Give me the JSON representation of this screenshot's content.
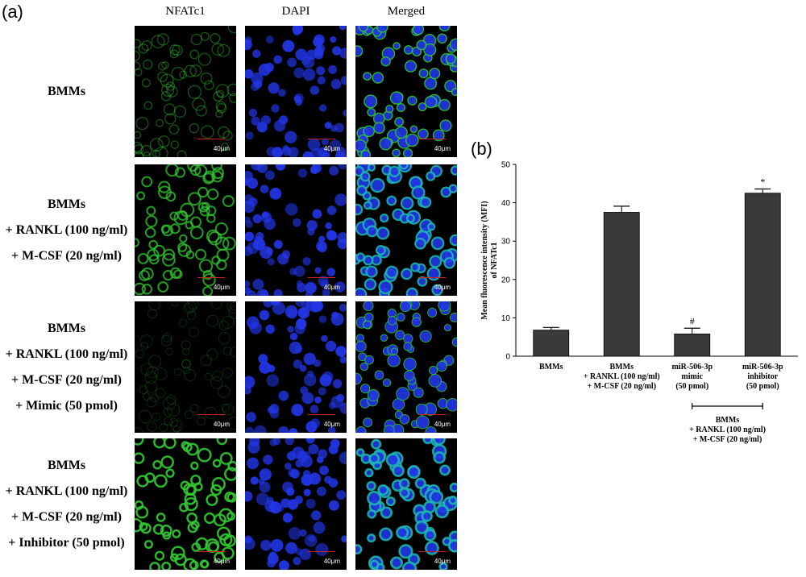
{
  "panel_a": {
    "letter": "(a)",
    "columns": [
      "NFATc1",
      "DAPI",
      "Merged"
    ],
    "rows": [
      {
        "label_lines": [
          "BMMs"
        ],
        "level": 0.35
      },
      {
        "label_lines": [
          "BMMs",
          "+ RANKL (100 ng/ml)",
          "+ M-CSF (20 ng/ml)"
        ],
        "level": 0.75
      },
      {
        "label_lines": [
          "BMMs",
          "+ RANKL (100 ng/ml)",
          "+ M-CSF (20 ng/ml)",
          "+ Mimic (50 pmol)"
        ],
        "level": 0.12
      },
      {
        "label_lines": [
          "BMMs",
          "+ RANKL (100 ng/ml)",
          "+ M-CSF (20 ng/ml)",
          "+ Inhibitor (50 pmol)"
        ],
        "level": 0.95
      }
    ],
    "scale_bar": "40μm",
    "colors": {
      "nfatc1": "#32c832",
      "dapi": "#2236e6",
      "merged_fill": "#1eb4b4"
    }
  },
  "panel_b": {
    "letter": "(b)",
    "group_label_lines": [
      "BMMs",
      "+ RANKL (100 ng/ml)",
      "+ M-CSF (20 ng/ml)"
    ]
  },
  "chart_data": {
    "type": "bar",
    "title": "",
    "ylabel_lines": [
      "Mean fluorescence intensity (MFI)",
      "of NFATc1"
    ],
    "xlabel": "",
    "ylim": [
      0,
      50
    ],
    "yticks": [
      0,
      10,
      20,
      30,
      40,
      50
    ],
    "categories": [
      {
        "lines": [
          "BMMs"
        ]
      },
      {
        "lines": [
          "BMMs",
          "+ RANKL (100 ng/ml)",
          "+ M-CSF (20 ng/ml)"
        ]
      },
      {
        "lines": [
          "miR-506-3p",
          "mimic",
          "(50 pmol)"
        ]
      },
      {
        "lines": [
          "miR-506-3p",
          "inhibitor",
          "(50 pmol)"
        ]
      }
    ],
    "values": [
      6.8,
      37.5,
      5.8,
      42.5
    ],
    "errors": [
      0.7,
      1.6,
      1.5,
      1.1
    ],
    "annotations": [
      "",
      "",
      "#",
      "*"
    ],
    "bar_color": "#3a3a3a"
  }
}
